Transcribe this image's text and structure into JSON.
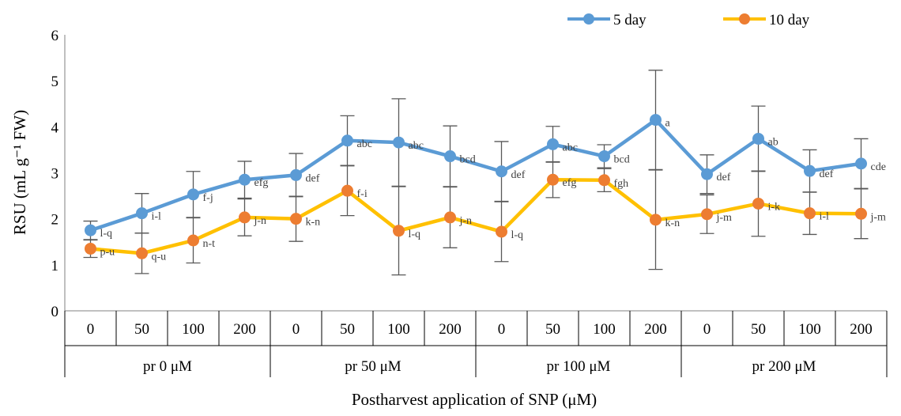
{
  "chart_data": {
    "type": "line",
    "xlabel": "Postharvest application of SNP (μM)",
    "ylabel": "RSU (mL g⁻¹ FW)",
    "ylim": [
      0,
      6
    ],
    "yticks": [
      "0",
      "1",
      "2",
      "3",
      "4",
      "5",
      "6"
    ],
    "grid": false,
    "legend_position": "top-right",
    "groups": [
      {
        "label": "pr 0 μM",
        "categories": [
          "0",
          "50",
          "100",
          "200"
        ]
      },
      {
        "label": "pr 50 μM",
        "categories": [
          "0",
          "50",
          "100",
          "200"
        ]
      },
      {
        "label": "pr 100 μM",
        "categories": [
          "0",
          "50",
          "100",
          "200"
        ]
      },
      {
        "label": "pr 200 μM",
        "categories": [
          "0",
          "50",
          "100",
          "200"
        ]
      }
    ],
    "series": [
      {
        "name": "5 day",
        "color": "#5B9BD5",
        "values": [
          1.75,
          2.12,
          2.53,
          2.85,
          2.95,
          3.7,
          3.66,
          3.36,
          3.03,
          3.62,
          3.36,
          4.15,
          2.97,
          3.74,
          3.04,
          3.2
        ],
        "errors": [
          0.2,
          0.43,
          0.5,
          0.4,
          0.47,
          0.54,
          0.95,
          0.66,
          0.65,
          0.39,
          0.25,
          1.08,
          0.42,
          0.71,
          0.46,
          0.54
        ],
        "labels": [
          "l-q",
          "i-l",
          "f-j",
          "efg",
          "def",
          "abc",
          "abc",
          "bcd",
          "def",
          "abc",
          "bcd",
          "a",
          "def",
          "ab",
          "def",
          "cde"
        ]
      },
      {
        "name": "10 day",
        "color": "#FFC000",
        "values": [
          1.35,
          1.25,
          1.53,
          2.03,
          2.0,
          2.61,
          1.74,
          2.03,
          1.72,
          2.85,
          2.84,
          1.98,
          2.1,
          2.33,
          2.12,
          2.11
        ],
        "errors": [
          0.19,
          0.44,
          0.49,
          0.4,
          0.49,
          0.54,
          0.96,
          0.66,
          0.65,
          0.39,
          0.25,
          1.08,
          0.42,
          0.71,
          0.46,
          0.54
        ],
        "labels": [
          "p-u",
          "q-u",
          "n-t",
          "j-n",
          "k-n",
          "f-i",
          "l-q",
          "j-n",
          "l-q",
          "efg",
          "fgh",
          "k-n",
          "j-m",
          "i-k",
          "i-l",
          "j-m"
        ]
      }
    ]
  }
}
